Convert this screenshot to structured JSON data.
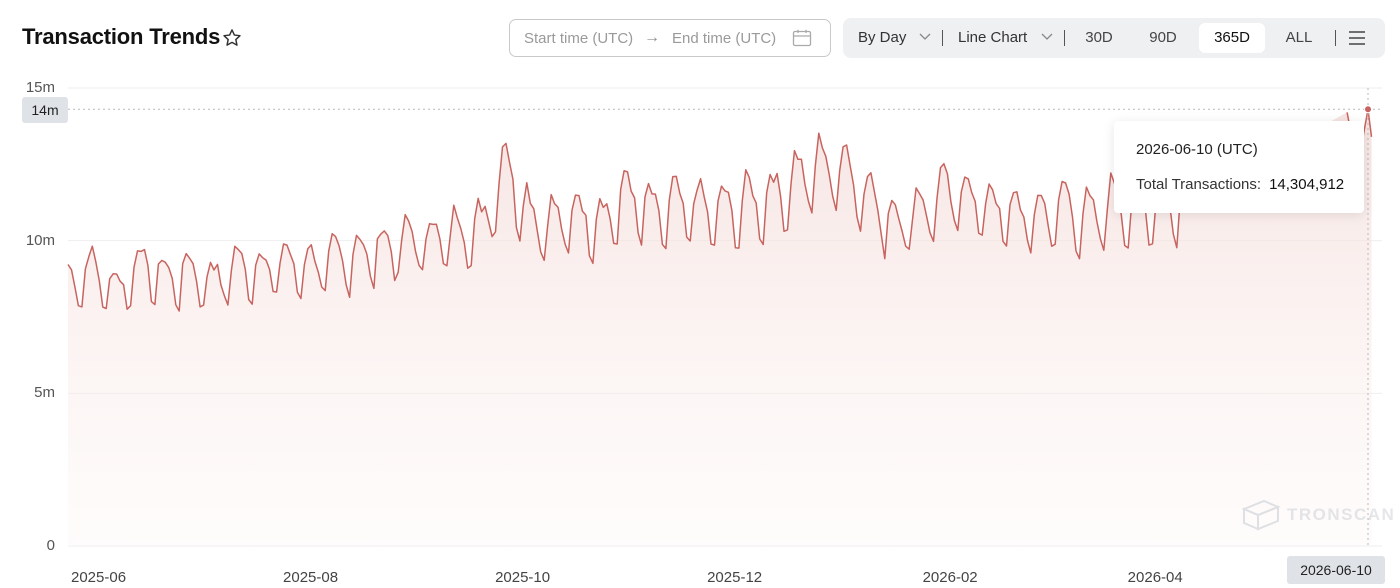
{
  "header": {
    "title": "Transaction Trends",
    "favorite_icon": "star-icon"
  },
  "date_range": {
    "start_placeholder": "Start time (UTC)",
    "arrow": "→",
    "end_placeholder": "End time (UTC)",
    "calendar_icon": "calendar-icon"
  },
  "toolbar": {
    "granularity": "By Day",
    "chart_type": "Line Chart",
    "ranges": [
      "30D",
      "90D",
      "365D",
      "ALL"
    ],
    "active_range": "365D",
    "menu_icon": "menu-icon"
  },
  "hover": {
    "y_marker": "14m",
    "x_marker": "2026-06-10",
    "tooltip_date": "2026-06-10 (UTC)",
    "tooltip_label": "Total Transactions:",
    "tooltip_value": "14,304,912"
  },
  "watermark": "TRONSCAN",
  "colors": {
    "line": "#c8645f",
    "area_top": "#f3dcd9",
    "grid": "#eeeeee",
    "toolbar_bg": "#eef0f2"
  },
  "chart_data": {
    "type": "line",
    "title": "Transaction Trends",
    "xlabel": "",
    "ylabel": "",
    "x_range": [
      "2025-06-01",
      "2026-06-10"
    ],
    "ylim": [
      0,
      15000000
    ],
    "y_ticks": [
      {
        "value": 0,
        "label": "0"
      },
      {
        "value": 5000000,
        "label": "5m"
      },
      {
        "value": 10000000,
        "label": "10m"
      },
      {
        "value": 15000000,
        "label": "15m"
      }
    ],
    "x_ticks": [
      {
        "date": "2025-06-01",
        "label": "2025-06"
      },
      {
        "date": "2025-08-01",
        "label": "2025-08"
      },
      {
        "date": "2025-10-01",
        "label": "2025-10"
      },
      {
        "date": "2025-12-01",
        "label": "2025-12"
      },
      {
        "date": "2026-02-01",
        "label": "2026-02"
      },
      {
        "date": "2026-04-01",
        "label": "2026-04"
      }
    ],
    "grid": true,
    "legend": "none",
    "highlight_point": {
      "date": "2026-06-10",
      "value": 14304912
    },
    "series": [
      {
        "name": "Total Transactions",
        "points": [
          [
            "2025-06-01",
            8700000
          ],
          [
            "2025-06-08",
            9100000
          ],
          [
            "2025-06-15",
            8400000
          ],
          [
            "2025-06-22",
            9300000
          ],
          [
            "2025-06-29",
            8800000
          ],
          [
            "2025-07-06",
            9000000
          ],
          [
            "2025-07-13",
            8700000
          ],
          [
            "2025-07-20",
            9200000
          ],
          [
            "2025-07-27",
            9100000
          ],
          [
            "2025-08-03",
            9300000
          ],
          [
            "2025-08-10",
            9200000
          ],
          [
            "2025-08-17",
            9400000
          ],
          [
            "2025-08-24",
            9600000
          ],
          [
            "2025-08-31",
            9800000
          ],
          [
            "2025-09-07",
            10000000
          ],
          [
            "2025-09-14",
            10100000
          ],
          [
            "2025-09-21",
            10300000
          ],
          [
            "2025-09-28",
            10500000
          ],
          [
            "2025-10-05",
            12600000
          ],
          [
            "2025-10-12",
            10800000
          ],
          [
            "2025-10-19",
            10600000
          ],
          [
            "2025-10-26",
            10900000
          ],
          [
            "2025-11-02",
            10700000
          ],
          [
            "2025-11-09",
            11600000
          ],
          [
            "2025-11-16",
            10900000
          ],
          [
            "2025-11-23",
            11200000
          ],
          [
            "2025-11-30",
            11100000
          ],
          [
            "2025-12-07",
            11000000
          ],
          [
            "2025-12-14",
            11300000
          ],
          [
            "2025-12-21",
            11500000
          ],
          [
            "2025-12-28",
            12100000
          ],
          [
            "2026-01-04",
            12500000
          ],
          [
            "2026-01-11",
            12400000
          ],
          [
            "2026-01-18",
            11400000
          ],
          [
            "2026-01-25",
            10600000
          ],
          [
            "2026-02-01",
            11000000
          ],
          [
            "2026-02-08",
            11600000
          ],
          [
            "2026-02-15",
            11500000
          ],
          [
            "2026-02-22",
            11100000
          ],
          [
            "2026-03-01",
            10900000
          ],
          [
            "2026-03-08",
            10800000
          ],
          [
            "2026-03-15",
            11200000
          ],
          [
            "2026-03-22",
            10700000
          ],
          [
            "2026-03-29",
            11300000
          ],
          [
            "2026-04-05",
            11100000
          ],
          [
            "2026-04-12",
            11400000
          ],
          [
            "2026-04-19",
            11200000
          ],
          [
            "2026-06-04",
            14200000
          ],
          [
            "2026-06-07",
            12400000
          ],
          [
            "2026-06-10",
            14304912
          ],
          [
            "2026-06-11",
            13400000
          ]
        ]
      }
    ]
  }
}
